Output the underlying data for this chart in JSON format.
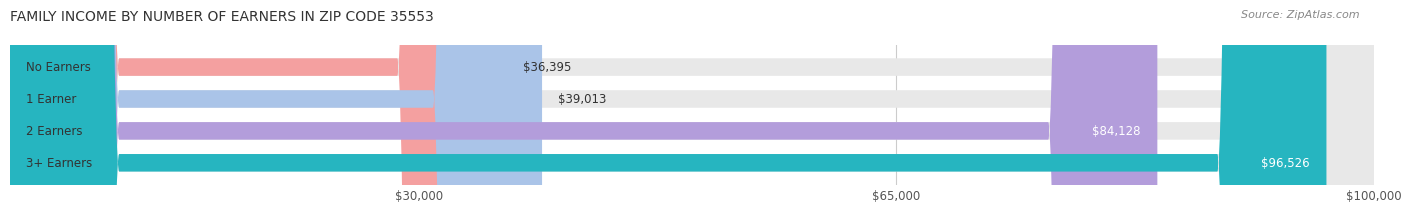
{
  "title": "FAMILY INCOME BY NUMBER OF EARNERS IN ZIP CODE 35553",
  "source": "Source: ZipAtlas.com",
  "categories": [
    "No Earners",
    "1 Earner",
    "2 Earners",
    "3+ Earners"
  ],
  "values": [
    36395,
    39013,
    84128,
    96526
  ],
  "bar_colors": [
    "#f4a0a0",
    "#aac4e8",
    "#b39ddb",
    "#26b5c0"
  ],
  "bar_labels": [
    "$36,395",
    "$39,013",
    "$84,128",
    "$96,526"
  ],
  "xmin": 0,
  "xmax": 100000,
  "xticks": [
    30000,
    65000,
    100000
  ],
  "xticklabels": [
    "$30,000",
    "$65,000",
    "$100,000"
  ],
  "bg_color": "#f5f5f5",
  "bar_bg_color": "#e8e8e8",
  "fig_bg_color": "#ffffff",
  "title_fontsize": 10,
  "label_fontsize": 8.5,
  "value_fontsize": 8.5,
  "source_fontsize": 8
}
